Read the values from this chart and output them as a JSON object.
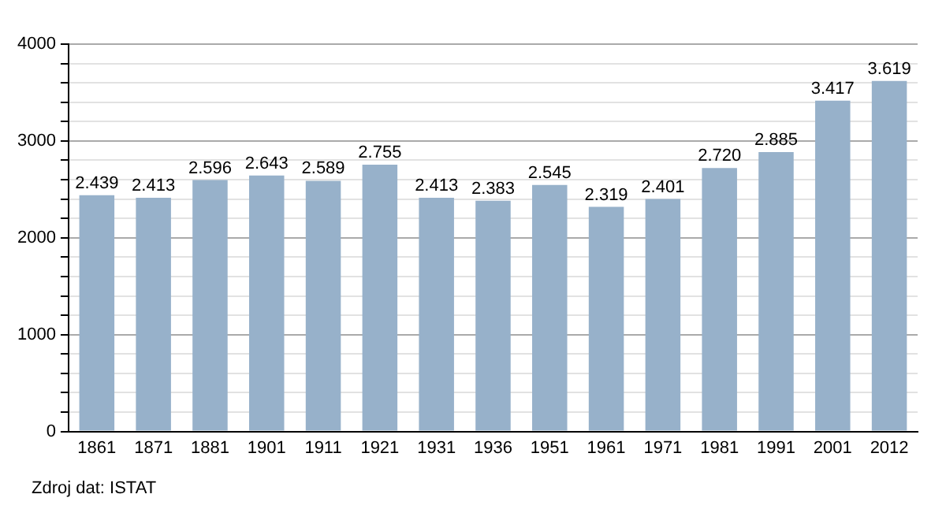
{
  "chart_data": {
    "type": "bar",
    "categories": [
      "1861",
      "1871",
      "1881",
      "1901",
      "1911",
      "1921",
      "1931",
      "1936",
      "1951",
      "1961",
      "1971",
      "1981",
      "1991",
      "2001",
      "2012"
    ],
    "values": [
      2439,
      2413,
      2596,
      2643,
      2589,
      2755,
      2413,
      2383,
      2545,
      2319,
      2401,
      2720,
      2885,
      3417,
      3619
    ],
    "value_labels": [
      "2.439",
      "2.413",
      "2.596",
      "2.643",
      "2.589",
      "2.755",
      "2.413",
      "2.383",
      "2.545",
      "2.319",
      "2.401",
      "2.720",
      "2.885",
      "3.417",
      "3.619"
    ],
    "color": "#97b1ca",
    "ylim": [
      0,
      4000
    ],
    "yticks": [
      0,
      {
        "value": 200,
        "label": null
      },
      {
        "value": 400,
        "label": null
      },
      {
        "value": 600,
        "label": null
      },
      {
        "value": 800,
        "label": null
      },
      1000,
      {
        "value": 1200,
        "label": null
      },
      {
        "value": 1400,
        "label": null
      },
      {
        "value": 1600,
        "label": null
      },
      {
        "value": 1800,
        "label": null
      },
      2000,
      {
        "value": 2200,
        "label": null
      },
      {
        "value": 2400,
        "label": null
      },
      {
        "value": 2600,
        "label": null
      },
      {
        "value": 2800,
        "label": null
      },
      3000,
      {
        "value": 3200,
        "label": null
      },
      {
        "value": 3400,
        "label": null
      },
      {
        "value": 3600,
        "label": null
      },
      {
        "value": 3800,
        "label": null
      },
      4000
    ],
    "grid": "y",
    "legend": false,
    "annotations": [
      "Zdroj dat: ISTAT"
    ]
  }
}
